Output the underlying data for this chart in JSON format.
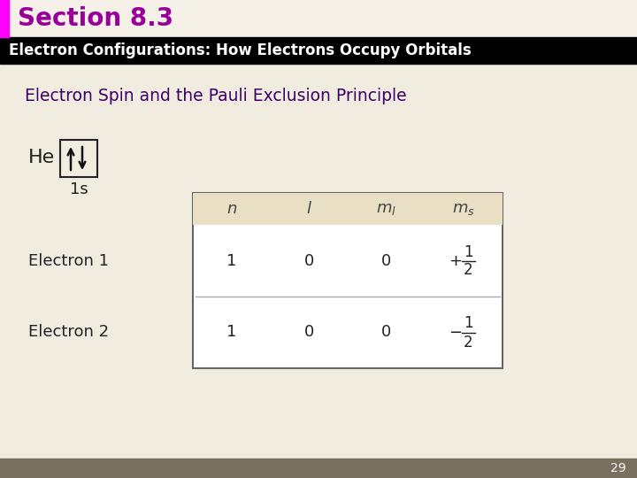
{
  "slide_bg": "#f0ece0",
  "title_bar_bg": "#f5f1e8",
  "title_text": "Section 8.3",
  "title_color": "#990099",
  "title_accent_color": "#ff00ff",
  "header_bg": "#000000",
  "header_text": "Electron Configurations: How Electrons Occupy Orbitals",
  "header_text_color": "#ffffff",
  "subtitle_text": "Electron Spin and the Pauli Exclusion Principle",
  "subtitle_color": "#3d0066",
  "he_label": "He",
  "orbital_label": "1s",
  "electron1_label": "Electron 1",
  "electron2_label": "Electron 2",
  "table_header_bg": "#e8dfc4",
  "table_bg": "#ffffff",
  "table_border_color": "#666666",
  "table_divider_color": "#aaaaaa",
  "page_number": "29",
  "footer_bg": "#7a7060",
  "text_color": "#222222"
}
